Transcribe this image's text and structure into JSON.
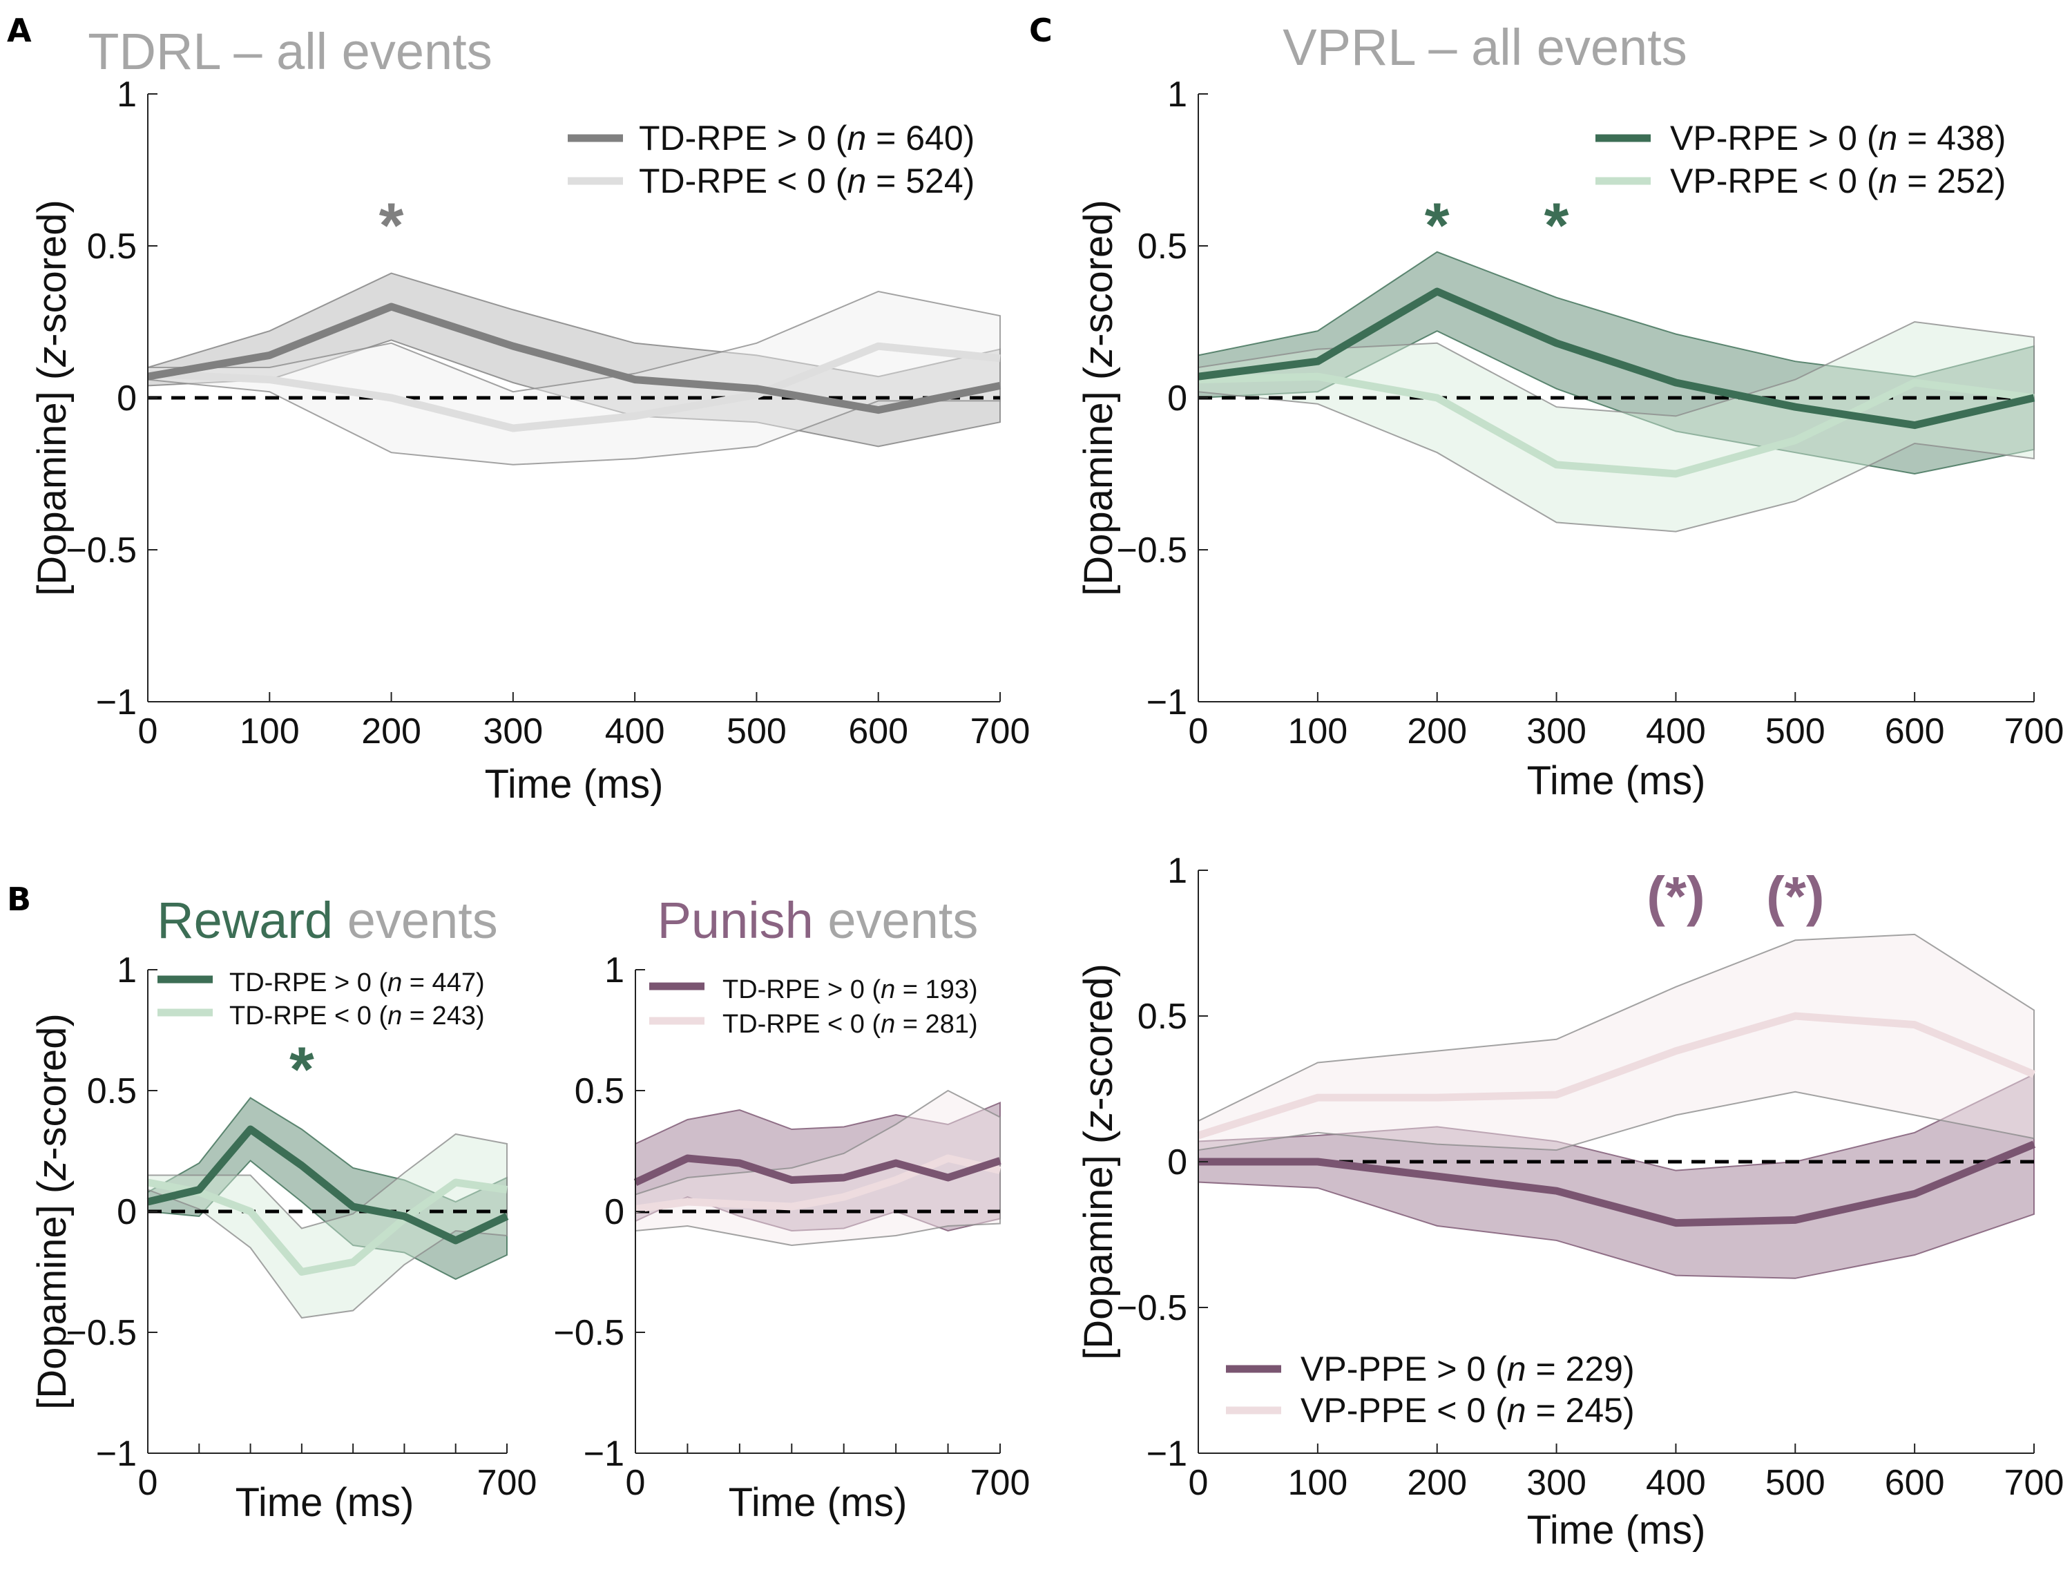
{
  "chart_data": [
    {
      "id": "A",
      "type": "line",
      "panel_label": "A",
      "title": {
        "bold": "TDRL",
        "rest": " – all events",
        "colors": {
          "bold": "#a6a6a6",
          "rest": "#a6a6a6"
        }
      },
      "xlabel": "Time (ms)",
      "ylabel_pre": "[Dopamine] (",
      "ylabel_italic": "z",
      "ylabel_post": "-scored)",
      "xlim": [
        0,
        700
      ],
      "ylim": [
        -1,
        1
      ],
      "xticks": [
        0,
        100,
        200,
        300,
        400,
        500,
        600,
        700
      ],
      "xtick_labels": [
        "0",
        "100",
        "200",
        "300",
        "400",
        "500",
        "600",
        "700"
      ],
      "yticks": [
        -1,
        -0.5,
        0,
        0.5,
        1
      ],
      "ytick_labels": [
        "−1",
        "−0.5",
        "0",
        "0.5",
        "1"
      ],
      "x": [
        0,
        100,
        200,
        300,
        400,
        500,
        600,
        700
      ],
      "series": [
        {
          "name": "TD-RPE > 0",
          "n_label": "(n = 640)",
          "color": "#808080",
          "band_color": "#bdbdbd",
          "values": [
            0.07,
            0.14,
            0.3,
            0.17,
            0.06,
            0.03,
            -0.04,
            0.04
          ],
          "upper": [
            0.1,
            0.22,
            0.41,
            0.29,
            0.18,
            0.14,
            0.07,
            0.16
          ],
          "lower": [
            0.04,
            0.06,
            0.19,
            0.05,
            -0.06,
            -0.08,
            -0.16,
            -0.08
          ]
        },
        {
          "name": "TD-RPE < 0",
          "n_label": "(n = 524)",
          "color": "#dedede",
          "band_color": "#eeeeee",
          "values": [
            0.08,
            0.06,
            0.0,
            -0.1,
            -0.06,
            0.01,
            0.17,
            0.13
          ],
          "upper": [
            0.1,
            0.1,
            0.18,
            0.02,
            0.08,
            0.18,
            0.35,
            0.27
          ],
          "lower": [
            0.06,
            0.02,
            -0.18,
            -0.22,
            -0.2,
            -0.16,
            -0.01,
            -0.01
          ]
        }
      ],
      "annotations": [
        {
          "text": "*",
          "x": 200,
          "color": "#808080"
        }
      ],
      "legend_location": "top-right"
    },
    {
      "id": "B_reward",
      "type": "line",
      "panel_label": "B",
      "title": {
        "bold": "Reward",
        "rest": " events",
        "colors": {
          "bold": "#3c6e55",
          "rest": "#a6a6a6"
        }
      },
      "xlabel": "Time (ms)",
      "ylabel_pre": "[Dopamine] (",
      "ylabel_italic": "z",
      "ylabel_post": "-scored)",
      "xlim": [
        0,
        700
      ],
      "ylim": [
        -1,
        1
      ],
      "xticks": [
        0,
        100,
        200,
        300,
        400,
        500,
        600,
        700
      ],
      "xtick_labels": [
        "0",
        "",
        "",
        "",
        "",
        "",
        "",
        "700"
      ],
      "yticks": [
        -1,
        -0.5,
        0,
        0.5,
        1
      ],
      "ytick_labels": [
        "−1",
        "−0.5",
        "0",
        "0.5",
        "1"
      ],
      "x": [
        0,
        100,
        200,
        300,
        400,
        500,
        600,
        700
      ],
      "series": [
        {
          "name": "TD-RPE > 0",
          "n_label": "(n = 447)",
          "color": "#3c6e55",
          "band_color": "#6e967f",
          "values": [
            0.04,
            0.09,
            0.34,
            0.19,
            0.02,
            -0.02,
            -0.12,
            -0.02
          ],
          "upper": [
            0.08,
            0.2,
            0.47,
            0.34,
            0.18,
            0.13,
            0.04,
            0.14
          ],
          "lower": [
            0.0,
            -0.02,
            0.21,
            0.04,
            -0.14,
            -0.17,
            -0.28,
            -0.18
          ]
        },
        {
          "name": "TD-RPE < 0",
          "n_label": "(n = 243)",
          "color": "#c5e0cb",
          "band_color": "#d5ebda",
          "values": [
            0.12,
            0.08,
            0.0,
            -0.25,
            -0.21,
            -0.03,
            0.12,
            0.09
          ],
          "upper": [
            0.15,
            0.15,
            0.15,
            -0.07,
            -0.01,
            0.16,
            0.32,
            0.28
          ],
          "lower": [
            0.09,
            0.01,
            -0.15,
            -0.44,
            -0.41,
            -0.22,
            -0.08,
            -0.1
          ]
        }
      ],
      "annotations": [
        {
          "text": "*",
          "x": 300,
          "color": "#3c6e55"
        }
      ],
      "legend_location": "top-left"
    },
    {
      "id": "B_punish",
      "type": "line",
      "panel_label": "",
      "title": {
        "bold": "Punish",
        "rest": " events",
        "colors": {
          "bold": "#8a6382",
          "rest": "#a6a6a6"
        }
      },
      "xlabel": "Time (ms)",
      "xlim": [
        0,
        700
      ],
      "ylim": [
        -1,
        1
      ],
      "xticks": [
        0,
        100,
        200,
        300,
        400,
        500,
        600,
        700
      ],
      "xtick_labels": [
        "0",
        "",
        "",
        "",
        "",
        "",
        "",
        "700"
      ],
      "yticks": [
        -1,
        -0.5,
        0,
        0.5,
        1
      ],
      "ytick_labels": [
        "−1",
        "−0.5",
        "0",
        "0.5",
        "1"
      ],
      "x": [
        0,
        100,
        200,
        300,
        400,
        500,
        600,
        700
      ],
      "series": [
        {
          "name": "TD-RPE > 0",
          "n_label": "(n = 193)",
          "color": "#7a5571",
          "band_color": "#a8889f",
          "values": [
            0.12,
            0.22,
            0.2,
            0.13,
            0.14,
            0.2,
            0.14,
            0.21
          ],
          "upper": [
            0.28,
            0.38,
            0.42,
            0.34,
            0.35,
            0.4,
            0.36,
            0.45
          ],
          "lower": [
            -0.04,
            0.06,
            -0.02,
            -0.08,
            -0.07,
            0.0,
            -0.08,
            -0.03
          ]
        },
        {
          "name": "TD-RPE < 0",
          "n_label": "(n = 281)",
          "color": "#eedcdf",
          "band_color": "#f5e8ea",
          "values": [
            0.01,
            0.04,
            0.03,
            0.02,
            0.06,
            0.13,
            0.22,
            0.17
          ],
          "upper": [
            0.07,
            0.14,
            0.16,
            0.18,
            0.24,
            0.36,
            0.5,
            0.39
          ],
          "lower": [
            -0.08,
            -0.06,
            -0.1,
            -0.14,
            -0.12,
            -0.1,
            -0.06,
            -0.05
          ]
        }
      ],
      "annotations": [],
      "legend_location": "top-left"
    },
    {
      "id": "C_top",
      "type": "line",
      "panel_label": "C",
      "title": {
        "bold": "VPRL",
        "rest": " – all events",
        "colors": {
          "bold": "#a6a6a6",
          "rest": "#a6a6a6"
        }
      },
      "xlabel": "Time (ms)",
      "ylabel_pre": "[Dopamine] (",
      "ylabel_italic": "z",
      "ylabel_post": "-scored)",
      "xlim": [
        0,
        700
      ],
      "ylim": [
        -1,
        1
      ],
      "xticks": [
        0,
        100,
        200,
        300,
        400,
        500,
        600,
        700
      ],
      "xtick_labels": [
        "0",
        "100",
        "200",
        "300",
        "400",
        "500",
        "600",
        "700"
      ],
      "yticks": [
        -1,
        -0.5,
        0,
        0.5,
        1
      ],
      "ytick_labels": [
        "−1",
        "−0.5",
        "0",
        "0.5",
        "1"
      ],
      "x": [
        0,
        100,
        200,
        300,
        400,
        500,
        600,
        700
      ],
      "series": [
        {
          "name": "VP-RPE > 0",
          "n_label": "(n = 438)",
          "color": "#3c6e55",
          "band_color": "#6e967f",
          "values": [
            0.07,
            0.12,
            0.35,
            0.18,
            0.05,
            -0.03,
            -0.09,
            0.0
          ],
          "upper": [
            0.14,
            0.22,
            0.48,
            0.33,
            0.21,
            0.12,
            0.07,
            0.17
          ],
          "lower": [
            0.0,
            0.02,
            0.22,
            0.03,
            -0.11,
            -0.18,
            -0.25,
            -0.17
          ]
        },
        {
          "name": "VP-RPE < 0",
          "n_label": "(n = 252)",
          "color": "#c5e0cb",
          "band_color": "#d5ebda",
          "values": [
            0.06,
            0.07,
            0.0,
            -0.22,
            -0.25,
            -0.14,
            0.05,
            0.0
          ],
          "upper": [
            0.1,
            0.16,
            0.18,
            -0.03,
            -0.06,
            0.06,
            0.25,
            0.2
          ],
          "lower": [
            0.02,
            -0.02,
            -0.18,
            -0.41,
            -0.44,
            -0.34,
            -0.15,
            -0.2
          ]
        }
      ],
      "annotations": [
        {
          "text": "*",
          "x": 200,
          "color": "#3c6e55"
        },
        {
          "text": "*",
          "x": 300,
          "color": "#3c6e55"
        }
      ],
      "legend_location": "top-right"
    },
    {
      "id": "C_bottom",
      "type": "line",
      "panel_label": "",
      "title": null,
      "xlabel": "Time (ms)",
      "ylabel_pre": "[Dopamine] (",
      "ylabel_italic": "z",
      "ylabel_post": "-scored)",
      "xlim": [
        0,
        700
      ],
      "ylim": [
        -1,
        1
      ],
      "xticks": [
        0,
        100,
        200,
        300,
        400,
        500,
        600,
        700
      ],
      "xtick_labels": [
        "0",
        "100",
        "200",
        "300",
        "400",
        "500",
        "600",
        "700"
      ],
      "yticks": [
        -1,
        -0.5,
        0,
        0.5,
        1
      ],
      "ytick_labels": [
        "−1",
        "−0.5",
        "0",
        "0.5",
        "1"
      ],
      "x": [
        0,
        100,
        200,
        300,
        400,
        500,
        600,
        700
      ],
      "series": [
        {
          "name": "VP-PPE > 0",
          "n_label": "(n = 229)",
          "color": "#7a5571",
          "band_color": "#a8889f",
          "values": [
            0.0,
            0.0,
            -0.05,
            -0.1,
            -0.21,
            -0.2,
            -0.11,
            0.06
          ],
          "upper": [
            0.07,
            0.09,
            0.12,
            0.07,
            -0.03,
            0.0,
            0.1,
            0.3
          ],
          "lower": [
            -0.07,
            -0.09,
            -0.22,
            -0.27,
            -0.39,
            -0.4,
            -0.32,
            -0.18
          ]
        },
        {
          "name": "VP-PPE < 0",
          "n_label": "(n = 245)",
          "color": "#eedcdf",
          "band_color": "#f5e8ea",
          "values": [
            0.09,
            0.22,
            0.22,
            0.23,
            0.38,
            0.5,
            0.47,
            0.3
          ],
          "upper": [
            0.14,
            0.34,
            0.38,
            0.42,
            0.6,
            0.76,
            0.78,
            0.52
          ],
          "lower": [
            0.04,
            0.1,
            0.06,
            0.04,
            0.16,
            0.24,
            0.16,
            0.08
          ]
        }
      ],
      "annotations": [
        {
          "text": "(*)",
          "x": 400,
          "color": "#8a6382"
        },
        {
          "text": "(*)",
          "x": 500,
          "color": "#8a6382"
        }
      ],
      "legend_location": "bottom-left"
    }
  ]
}
